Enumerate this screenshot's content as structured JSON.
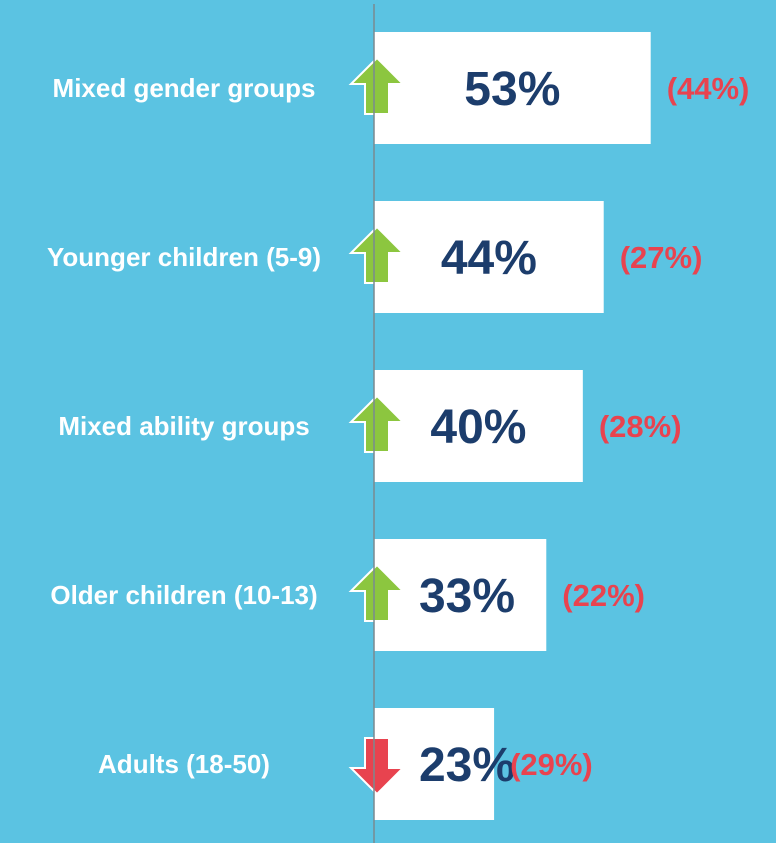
{
  "chart_data": {
    "type": "bar",
    "categories": [
      "Mixed gender groups",
      "Younger children (5-9)",
      "Mixed ability groups",
      "Older children (10-13)",
      "Adults (18-50)"
    ],
    "values": [
      53,
      44,
      40,
      33,
      23
    ],
    "value_labels": [
      "53%",
      "44%",
      "40%",
      "33%",
      "23%"
    ],
    "previous_values": [
      44,
      27,
      28,
      22,
      29
    ],
    "previous_value_labels": [
      "(44%)",
      "(27%)",
      "(28%)",
      "(22%)",
      "(29%)"
    ],
    "color": "#ffffff",
    "up_color": "#8cc63f",
    "down_color": "#e8434f",
    "xlim": [
      0,
      77
    ]
  }
}
